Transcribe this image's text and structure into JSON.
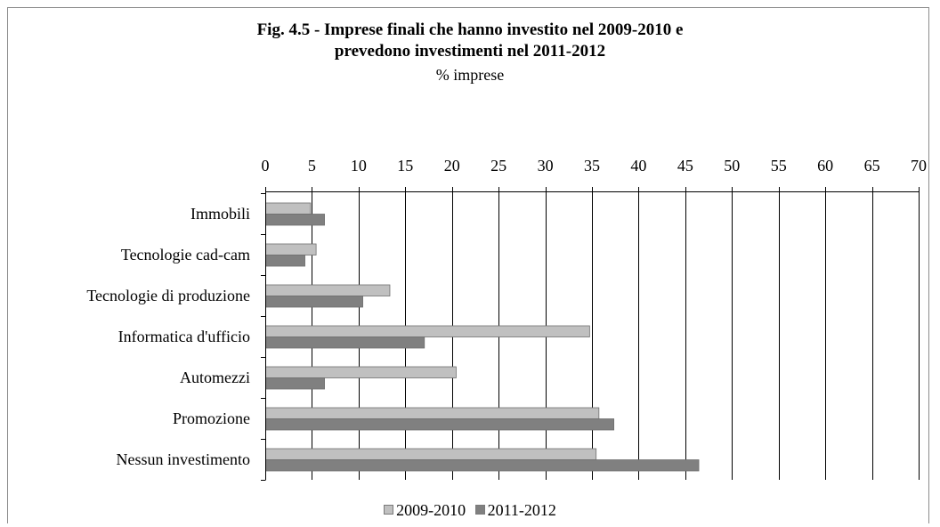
{
  "chart_data": {
    "type": "bar",
    "orientation": "horizontal",
    "title": "Fig. 4.5 - Imprese finali che hanno investito nel 2009-2010 e\nprevedono investimenti nel 2011-2012",
    "subtitle": "% imprese",
    "categories": [
      "Immobili",
      "Tecnologie cad-cam",
      "Tecnologie di produzione",
      "Informatica d'ufficio",
      "Automezzi",
      "Promozione",
      "Nessun investimento"
    ],
    "series": [
      {
        "name": "2009-2010",
        "color": "#c0c0c0",
        "values": [
          4.8,
          5.4,
          13.3,
          34.7,
          20.4,
          35.7,
          35.4
        ]
      },
      {
        "name": "2011-2012",
        "color": "#808080",
        "values": [
          6.3,
          4.2,
          10.4,
          17.0,
          6.3,
          37.3,
          46.4
        ]
      }
    ],
    "xlim": [
      0,
      70
    ],
    "x_ticks": [
      "0",
      "5",
      "10",
      "15",
      "20",
      "25",
      "30",
      "35",
      "40",
      "45",
      "50",
      "55",
      "60",
      "65",
      "70"
    ],
    "axis_position": "top",
    "grid": true,
    "legend_position": "bottom"
  }
}
